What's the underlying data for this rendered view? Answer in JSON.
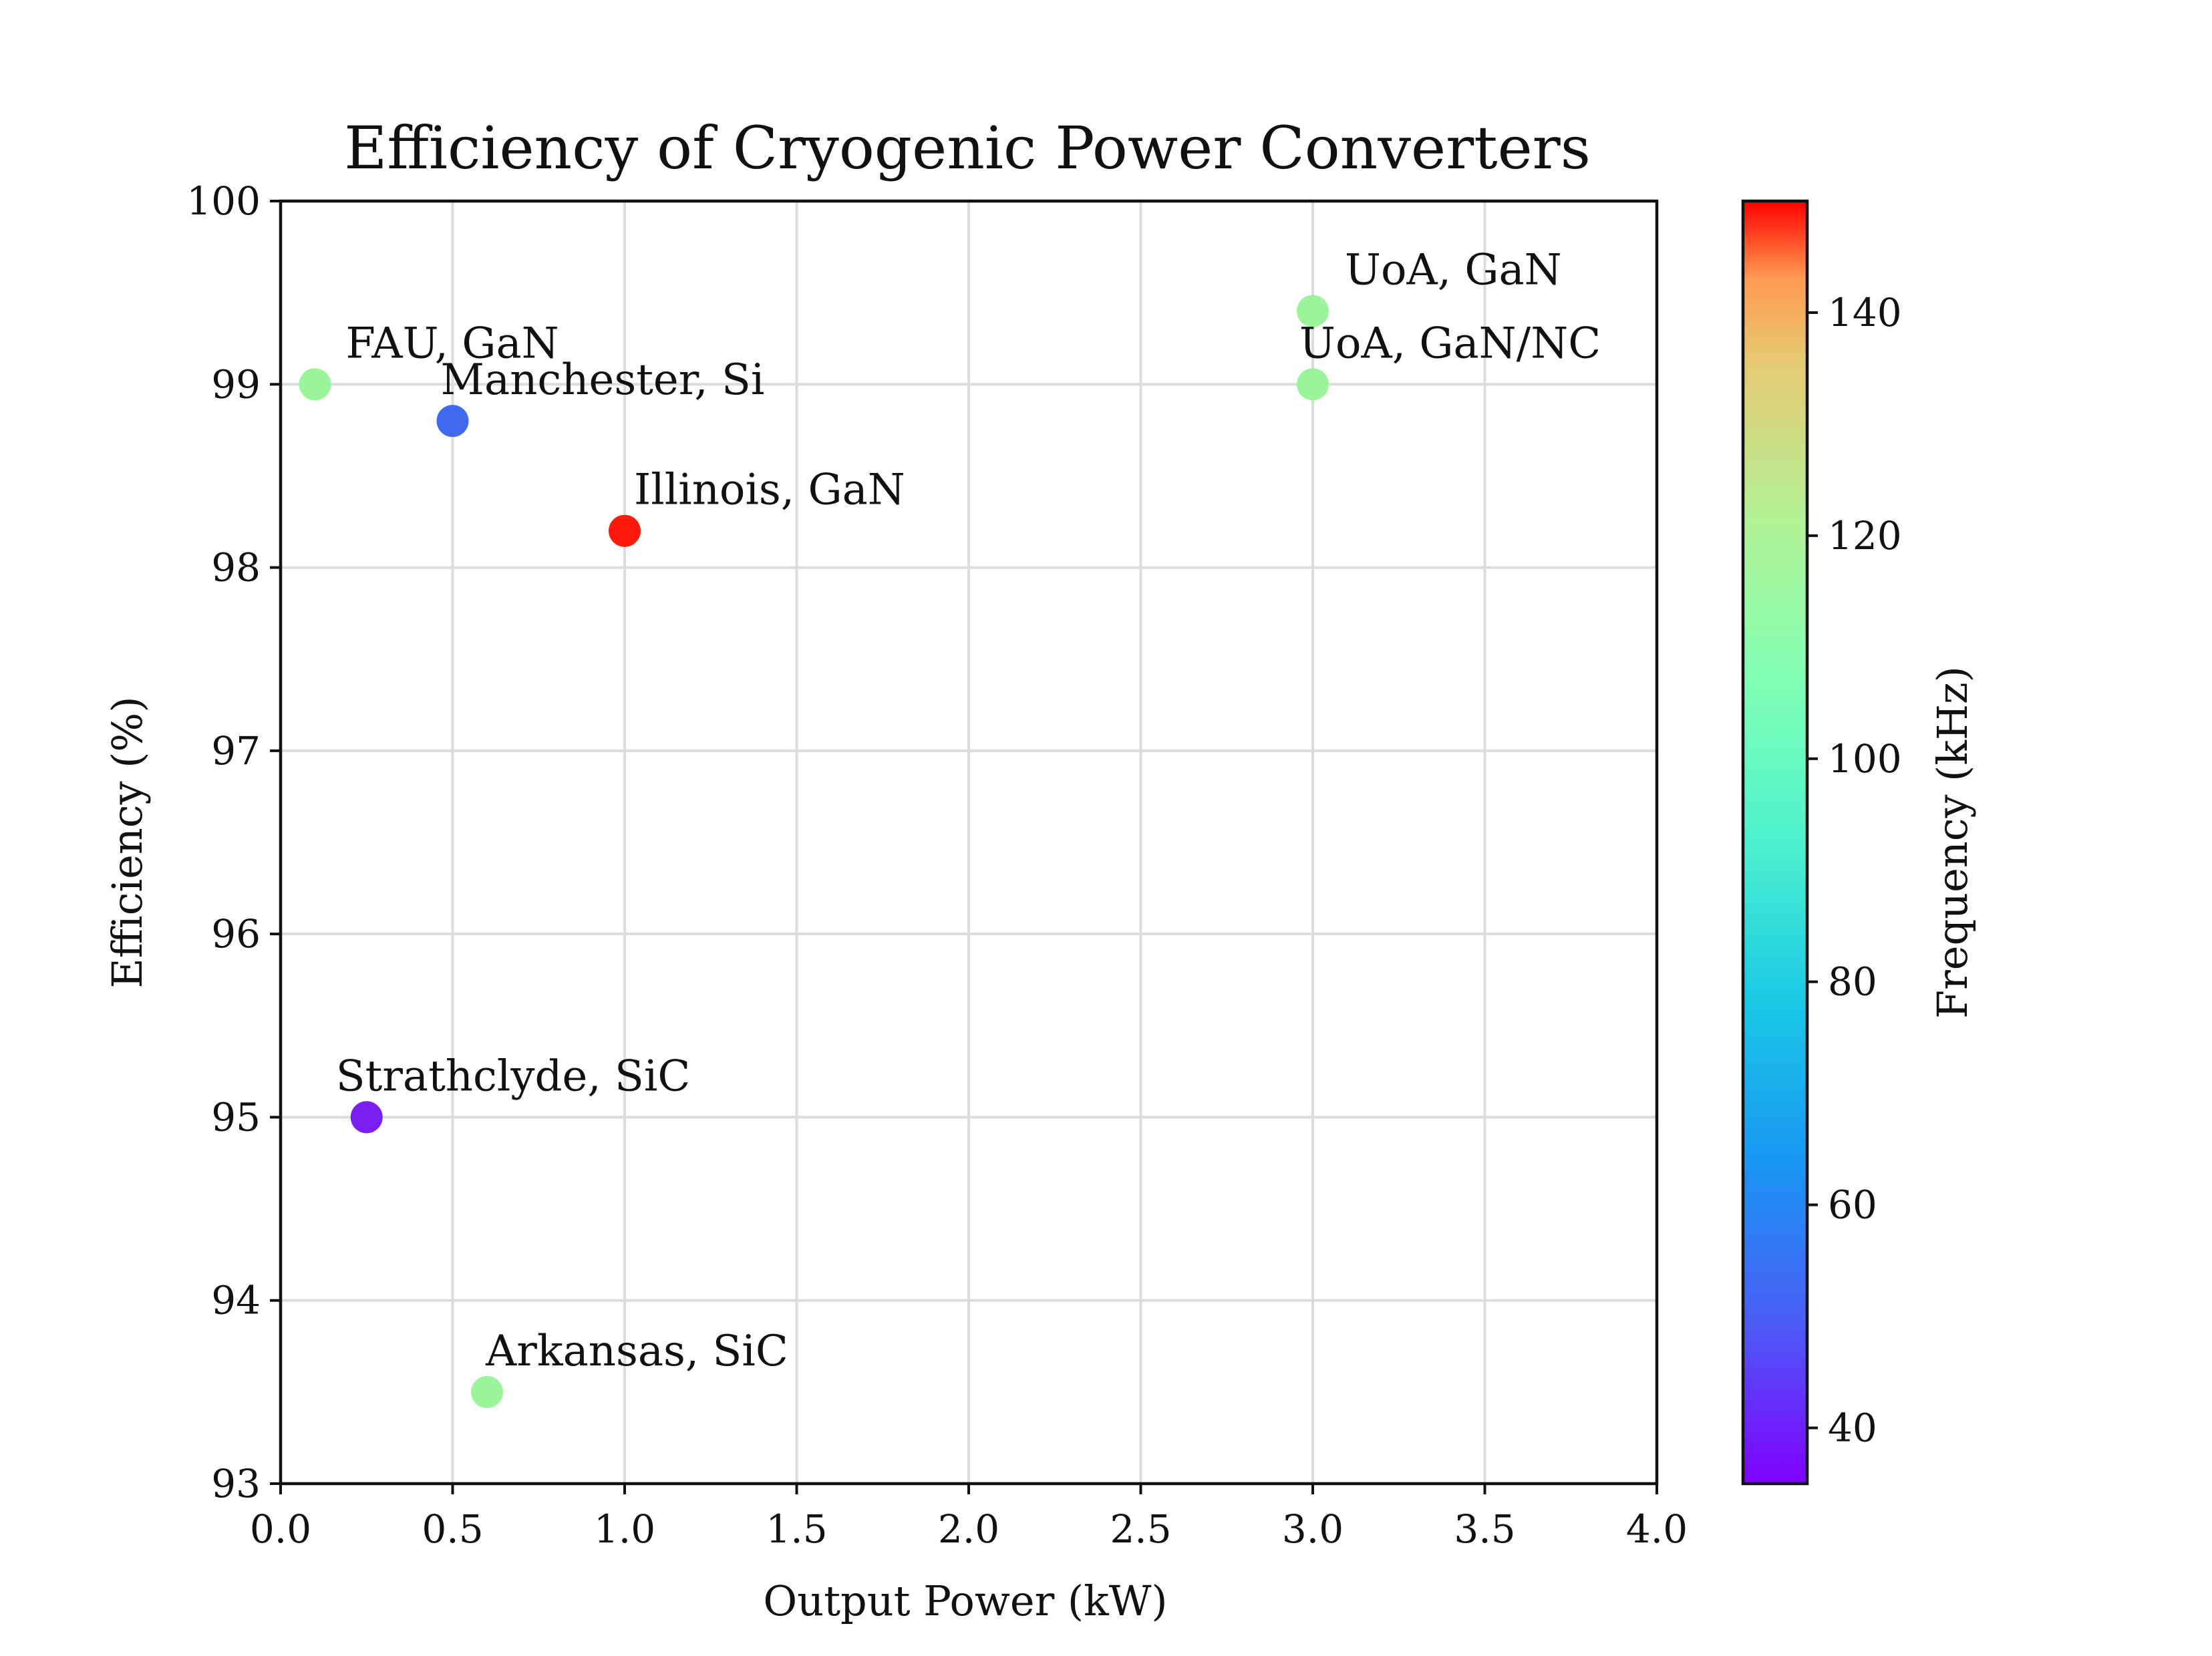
{
  "chart_data": {
    "type": "scatter",
    "title": "Efficiency of Cryogenic Power Converters",
    "xlabel": "Output Power (kW)",
    "ylabel": "Efficiency (%)",
    "xlim": [
      0,
      4
    ],
    "ylim": [
      93,
      100
    ],
    "xticks": [
      0.0,
      0.5,
      1.0,
      1.5,
      2.0,
      2.5,
      3.0,
      3.5,
      4.0
    ],
    "xtick_labels": [
      "0.0",
      "0.5",
      "1.0",
      "1.5",
      "2.0",
      "2.5",
      "3.0",
      "3.5",
      "4.0"
    ],
    "yticks": [
      93,
      94,
      95,
      96,
      97,
      98,
      99,
      100
    ],
    "ytick_labels": [
      "93",
      "94",
      "95",
      "96",
      "97",
      "98",
      "99",
      "100"
    ],
    "grid": true,
    "colormap": "rainbow",
    "colorbar": {
      "label": "Frequency (kHz)",
      "range": [
        35,
        150
      ],
      "ticks": [
        40,
        60,
        80,
        100,
        120,
        140
      ],
      "tick_labels": [
        "40",
        "60",
        "80",
        "100",
        "120",
        "140"
      ]
    },
    "points": [
      {
        "label": "FAU, GaN",
        "x": 0.1,
        "y": 99.0,
        "frequency": 100,
        "color": "#9af59a"
      },
      {
        "label": "Manchester, Si",
        "x": 0.5,
        "y": 98.8,
        "frequency": 50,
        "color": "#4169f0"
      },
      {
        "label": "Illinois, GaN",
        "x": 1.0,
        "y": 98.2,
        "frequency": 150,
        "color": "#ff1a0d"
      },
      {
        "label": "Strathclyde, SiC",
        "x": 0.25,
        "y": 95.0,
        "frequency": 35,
        "color": "#7a1ff2"
      },
      {
        "label": "Arkansas, SiC",
        "x": 0.6,
        "y": 93.5,
        "frequency": 100,
        "color": "#9af59a"
      },
      {
        "label": "UoA, GaN",
        "x": 3.0,
        "y": 99.4,
        "frequency": 100,
        "color": "#9af59a"
      },
      {
        "label": "UoA, GaN/NC",
        "x": 3.0,
        "y": 99.0,
        "frequency": 100,
        "color": "#9af59a"
      }
    ]
  }
}
